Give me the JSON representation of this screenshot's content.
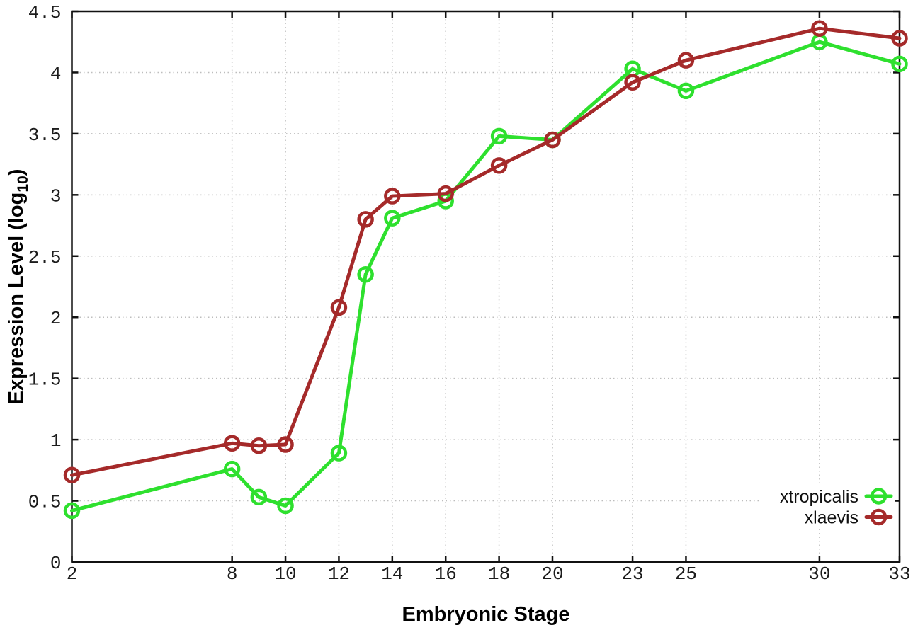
{
  "chart_data": {
    "type": "line",
    "title": "",
    "xlabel": "Embryonic Stage",
    "ylabel": "Expression Level (log10)",
    "ylabel_parts": {
      "prefix": "Expression Level (log",
      "sub": "10",
      "suffix": ")"
    },
    "x": [
      2,
      8,
      9,
      10,
      12,
      13,
      14,
      16,
      18,
      20,
      23,
      25,
      30,
      33
    ],
    "series": [
      {
        "name": "xtropicalis",
        "color": "#2ee02e",
        "values": [
          0.42,
          0.76,
          0.53,
          0.46,
          0.89,
          2.35,
          2.81,
          2.95,
          3.48,
          3.45,
          4.03,
          3.85,
          4.25,
          4.07
        ]
      },
      {
        "name": "xlaevis",
        "color": "#a52a2a",
        "values": [
          0.71,
          0.97,
          0.95,
          0.96,
          2.08,
          2.8,
          2.99,
          3.01,
          3.24,
          3.45,
          3.92,
          4.1,
          4.36,
          4.28
        ]
      }
    ],
    "xlim": [
      2,
      33
    ],
    "ylim": [
      0,
      4.5
    ],
    "x_ticks": [
      2,
      8,
      10,
      12,
      14,
      16,
      18,
      20,
      23,
      25,
      30,
      33
    ],
    "x_tick_labels": [
      "2",
      "8",
      "10",
      "12",
      "14",
      "16",
      "18",
      "20",
      "23",
      "25",
      "30",
      "33"
    ],
    "y_ticks": [
      0,
      0.5,
      1,
      1.5,
      2,
      2.5,
      3,
      3.5,
      4,
      4.5
    ],
    "y_tick_labels": [
      "0",
      "0.5",
      "1",
      "1.5",
      "2",
      "2.5",
      "3",
      "3.5",
      "4",
      "4.5"
    ],
    "grid": true,
    "grid_style": "dotted",
    "grid_color": "#bdbdbd",
    "axis_color": "#111111",
    "background": "#ffffff",
    "legend_position": "bottom-right-inside",
    "legend": [
      "xtropicalis",
      "xlaevis"
    ],
    "marker": "open-circle"
  }
}
